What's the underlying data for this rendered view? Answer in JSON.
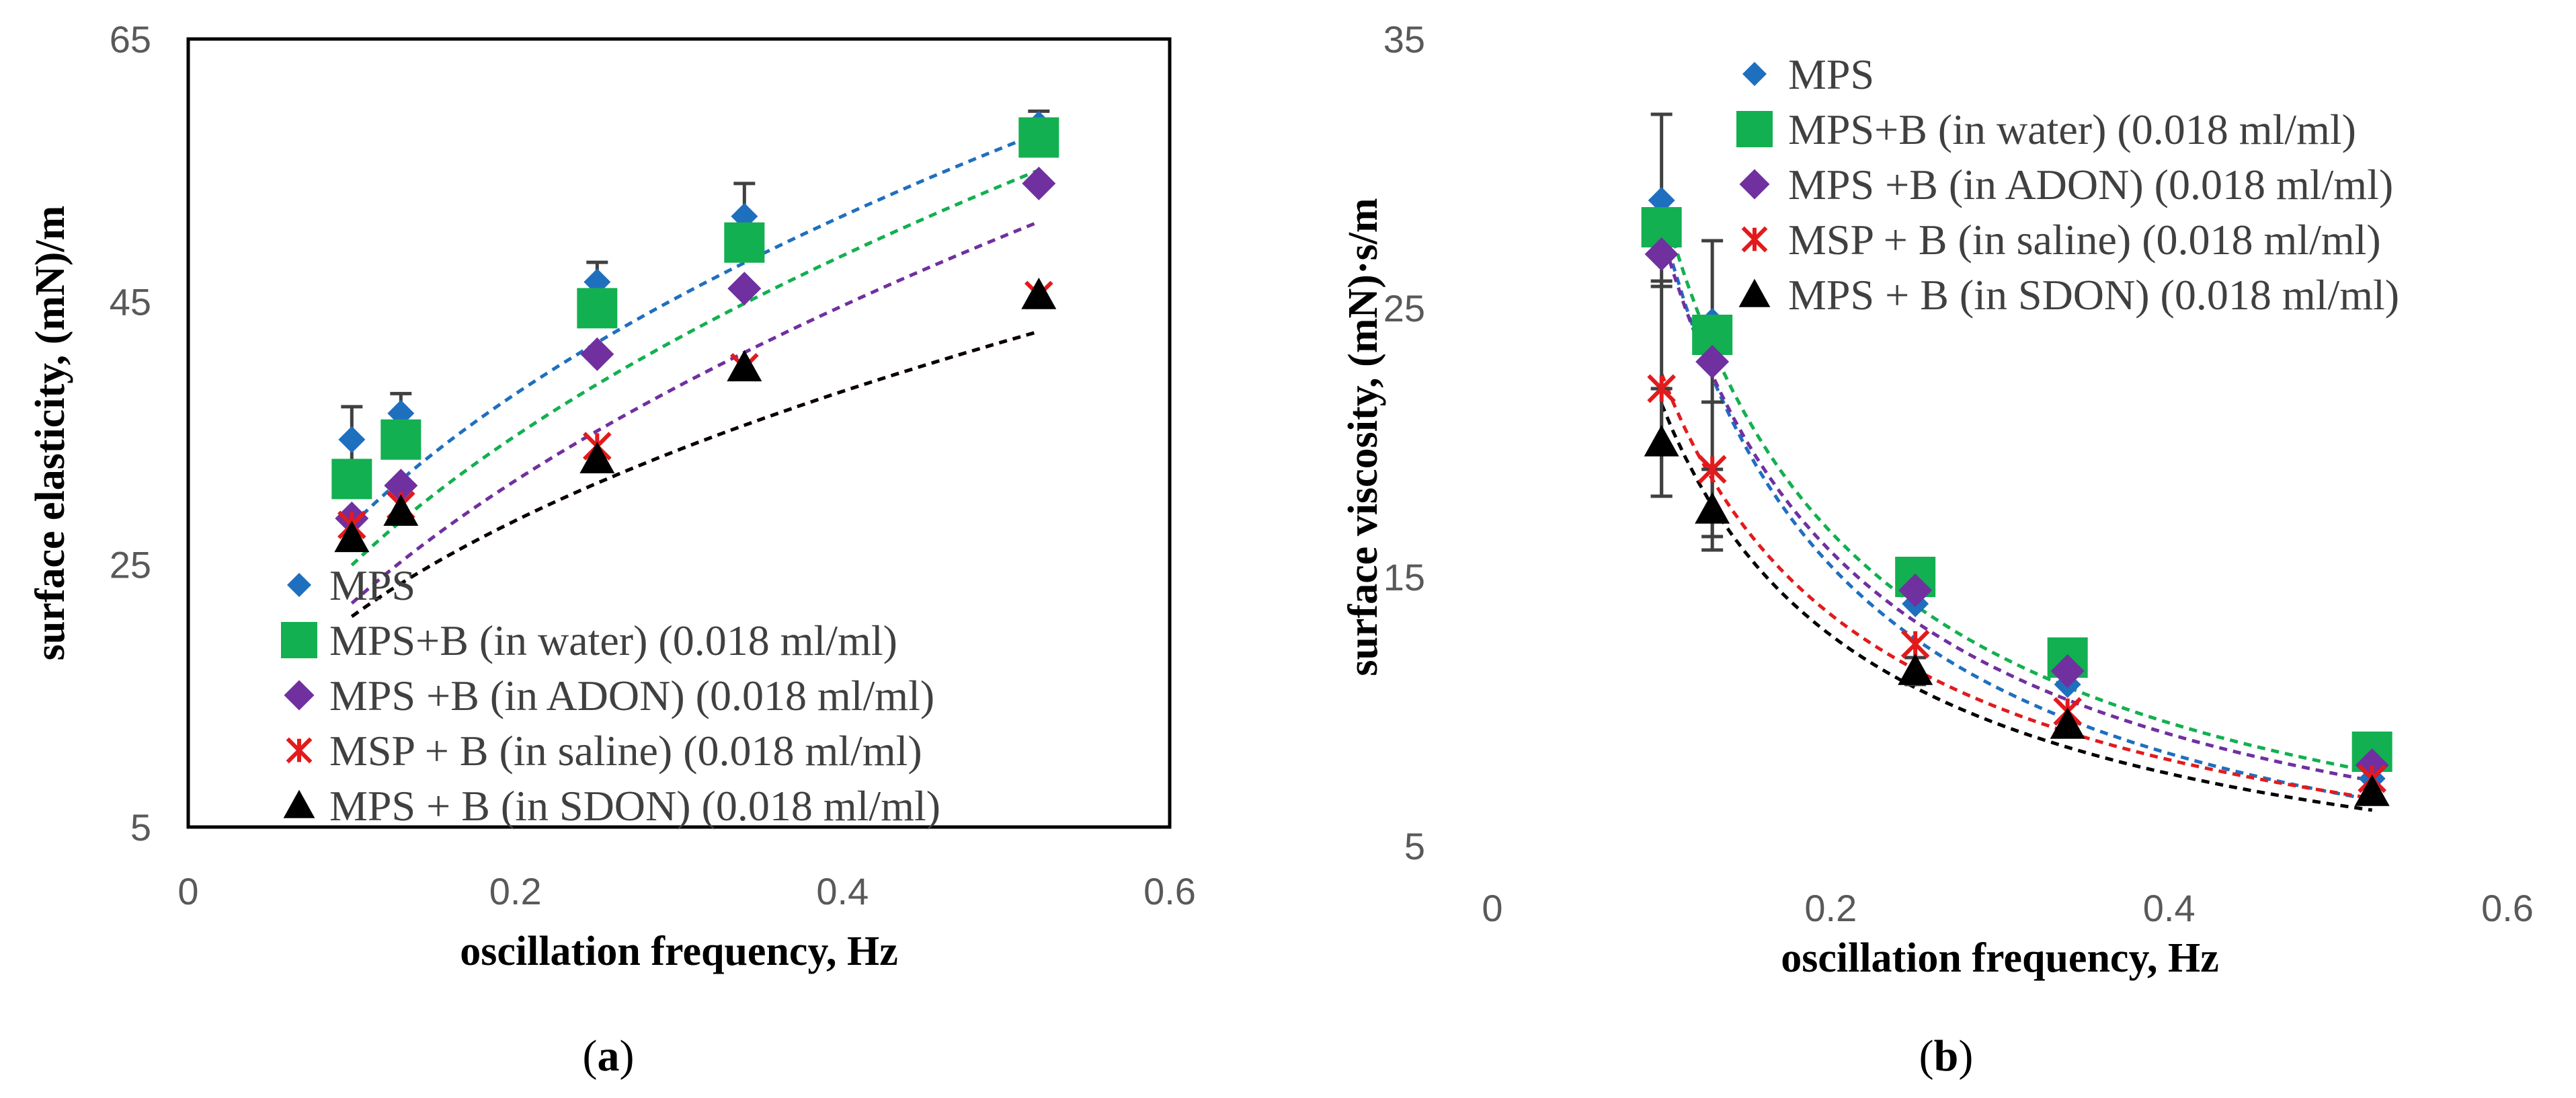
{
  "series_styles": [
    {
      "color": "#1f6fbf",
      "marker": "diamond"
    },
    {
      "color": "#12b050",
      "marker": "square"
    },
    {
      "color": "#7030a0",
      "marker": "diamond"
    },
    {
      "color": "#e31a1c",
      "marker": "star"
    },
    {
      "color": "#000000",
      "marker": "triangle"
    }
  ],
  "chart_data": [
    {
      "panel": "a",
      "caption_letter": "a",
      "type": "scatter",
      "xlabel": "oscillation frequency, Hz",
      "ylabel": "surface elasticity, (mN)/m",
      "xlim": [
        0,
        0.6
      ],
      "ylim": [
        5,
        65
      ],
      "xticks": [
        0,
        0.2,
        0.4,
        0.6
      ],
      "xtick_labels": [
        "0",
        "0.2",
        "0.4",
        "0.6"
      ],
      "yticks": [
        5,
        25,
        45,
        65
      ],
      "ytick_labels": [
        "5",
        "25",
        "45",
        "65"
      ],
      "legend_position": "bottom-left",
      "x": [
        0.1,
        0.13,
        0.25,
        0.34,
        0.52
      ],
      "series": [
        {
          "name": "MPS",
          "values": [
            34.5,
            36.5,
            46.5,
            51.5,
            58.5
          ],
          "error": [
            2.5,
            1.5,
            1.5,
            2.5,
            1.0
          ],
          "trend": {
            "type": "power",
            "a": 77.1,
            "b": 0.44
          }
        },
        {
          "name": "MPS+B (in water)",
          "concentration": "(0.018 ml/ml)",
          "values": [
            31.5,
            34.5,
            44.5,
            49.5,
            57.5
          ],
          "error": [
            0,
            0,
            0,
            0,
            0
          ],
          "trend": {
            "type": "power",
            "a": 75.3,
            "b": 0.48
          }
        },
        {
          "name": "MPS +B (in ADON)",
          "concentration": "(0.018 ml/ml)",
          "values": [
            28.5,
            31.0,
            41.0,
            46.0,
            54.0
          ],
          "error": [
            0,
            0,
            0,
            0,
            0
          ],
          "trend": {
            "type": "power",
            "a": 71.3,
            "b": 0.51
          }
        },
        {
          "name": "MSP + B (in saline)",
          "concentration": "(0.018 ml/ml)",
          "values": [
            28.0,
            29.5,
            34.0,
            40.0,
            45.5
          ],
          "error": [
            0,
            0,
            0,
            0,
            0
          ],
          "trend": {
            "type": "power",
            "a": 56.6,
            "b": 0.43
          }
        },
        {
          "name": "MPS + B (in SDON)",
          "concentration": "(0.018 ml/ml)",
          "values": [
            27.0,
            29.0,
            33.0,
            40.0,
            45.5
          ],
          "error": [
            0,
            0,
            0,
            0,
            0
          ],
          "trend": {
            "type": "power",
            "a": 56.6,
            "b": 0.43
          }
        }
      ]
    },
    {
      "panel": "b",
      "caption_letter": "b",
      "type": "scatter",
      "xlabel": "oscillation frequency, Hz",
      "ylabel": "surface viscosity, (mN)·s/m",
      "xlim": [
        0,
        0.6
      ],
      "ylim": [
        5,
        35
      ],
      "xticks": [
        0,
        0.2,
        0.4,
        0.6
      ],
      "xtick_labels": [
        "0",
        "0.2",
        "0.4",
        "0.6"
      ],
      "yticks": [
        5,
        15,
        25,
        35
      ],
      "ytick_labels": [
        "5",
        "15",
        "25",
        "35"
      ],
      "legend_position": "top-right",
      "x": [
        0.1,
        0.13,
        0.25,
        0.34,
        0.52
      ],
      "series": [
        {
          "name": "MPS",
          "values": [
            29.0,
            24.5,
            14.0,
            11.0,
            7.5
          ],
          "error": [
            3.2,
            3.0,
            0,
            0,
            0
          ],
          "trend": {
            "type": "power",
            "a": 3.8,
            "b": -0.87
          }
        },
        {
          "name": "MPS+B (in water)",
          "concentration": "(0.018 ml/ml)",
          "values": [
            28.0,
            24.0,
            15.0,
            12.0,
            8.5
          ],
          "error": [
            0,
            0,
            0,
            0,
            0
          ],
          "trend": {
            "type": "power",
            "a": 4.6,
            "b": -0.8
          }
        },
        {
          "name": "MPS +B (in ADON)",
          "concentration": "(0.018 ml/ml)",
          "values": [
            27.0,
            23.0,
            14.5,
            11.5,
            8.0
          ],
          "error": [
            0,
            0,
            0,
            0,
            0
          ],
          "trend": {
            "type": "power",
            "a": 4.4,
            "b": -0.8
          }
        },
        {
          "name": "MSP + B (in saline)",
          "concentration": "(0.018 ml/ml)",
          "values": [
            22.0,
            19.0,
            12.5,
            10.0,
            7.5
          ],
          "error": [
            4.0,
            2.5,
            0,
            0,
            0
          ],
          "trend": {
            "type": "power",
            "a": 4.2,
            "b": -0.73
          }
        },
        {
          "name": "MPS + B (in SDON)",
          "concentration": "(0.018 ml/ml)",
          "values": [
            20.0,
            17.5,
            11.5,
            9.5,
            7.0
          ],
          "error": [
            2.0,
            1.5,
            0.5,
            0,
            0
          ],
          "trend": {
            "type": "power",
            "a": 3.9,
            "b": -0.74
          }
        }
      ]
    }
  ]
}
